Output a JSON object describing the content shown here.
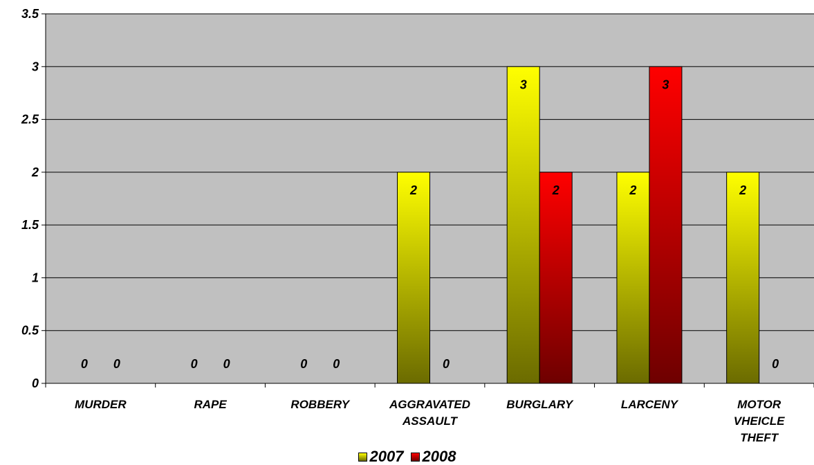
{
  "chart_data": {
    "type": "bar",
    "categories": [
      [
        "MURDER"
      ],
      [
        "RAPE"
      ],
      [
        "ROBBERY"
      ],
      [
        "AGGRAVATED",
        "ASSAULT"
      ],
      [
        "BURGLARY"
      ],
      [
        "LARCENY"
      ],
      [
        "MOTOR",
        "VHEICLE",
        "THEFT"
      ]
    ],
    "series": [
      {
        "name": "2007",
        "values": [
          0,
          0,
          0,
          2,
          3,
          2,
          2
        ],
        "color_top": "#ffff00",
        "color_bottom": "#6b6b00"
      },
      {
        "name": "2008",
        "values": [
          0,
          0,
          0,
          0,
          2,
          3,
          0
        ],
        "color_top": "#ff0000",
        "color_bottom": "#6e0000"
      }
    ],
    "ylim": [
      0,
      3.5
    ],
    "yticks": [
      "0",
      "0.5",
      "1",
      "1.5",
      "2",
      "2.5",
      "3",
      "3.5"
    ],
    "data_labels": true,
    "grid": true,
    "legend_position": "bottom",
    "plot_background": "#c0c0c0"
  }
}
